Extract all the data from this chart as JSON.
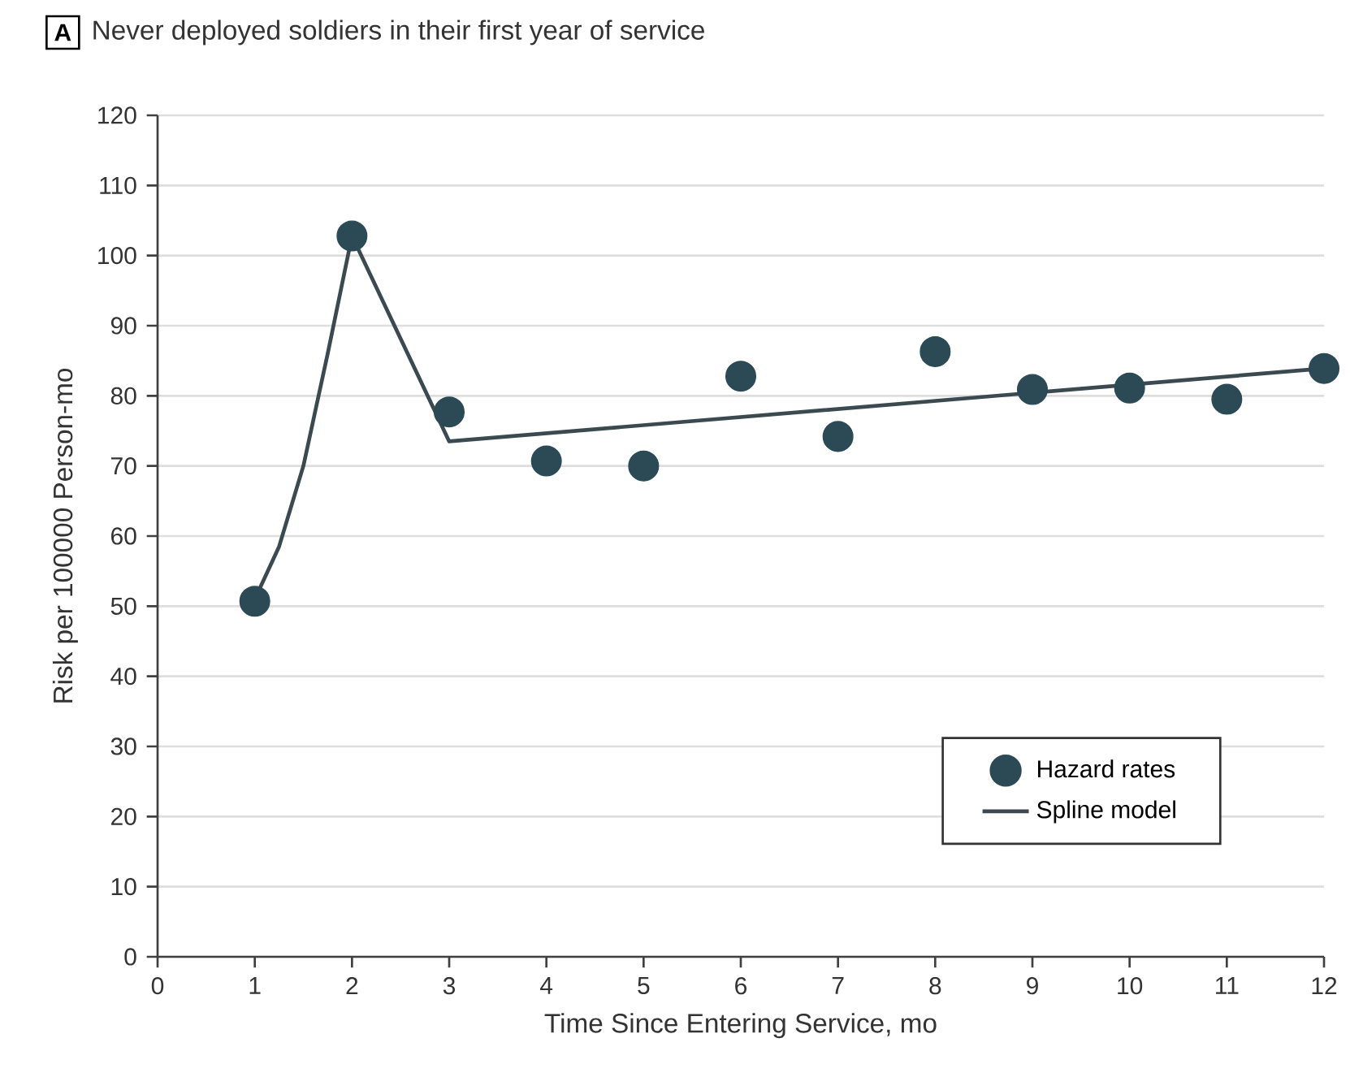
{
  "chart_data": {
    "type": "scatter",
    "title": "Never deployed soldiers in their first year of service",
    "annotations": [
      "A"
    ],
    "xlabel": "Time Since Entering Service, mo",
    "ylabel": "Risk per 100000 Person-mo",
    "xlim": [
      0,
      12
    ],
    "ylim": [
      0,
      120
    ],
    "xticks": [
      0,
      1,
      2,
      3,
      4,
      5,
      6,
      7,
      8,
      9,
      10,
      11,
      12
    ],
    "yticks": [
      0,
      10,
      20,
      30,
      40,
      50,
      60,
      70,
      80,
      90,
      100,
      110,
      120
    ],
    "grid": "y",
    "legend": "bottom right",
    "marker": "circle",
    "series": [
      {
        "name": "Hazard rates",
        "color": "#2b4a55",
        "x": [
          1,
          2,
          3,
          4,
          5,
          6,
          7,
          8,
          9,
          10,
          11,
          12
        ],
        "values": [
          50.7,
          102.8,
          77.7,
          70.7,
          70,
          82.8,
          74.2,
          86.3,
          80.9,
          81.1,
          79.5,
          83.9
        ]
      },
      {
        "name": "Spline model",
        "type": "line",
        "marker": "none",
        "line_style": "solid",
        "color": "#3a4a50",
        "x": [
          1,
          1.25,
          1.5,
          1.75,
          2,
          3,
          12
        ],
        "values": [
          51,
          58.5,
          70,
          86,
          102.8,
          73.5,
          83.9
        ]
      }
    ]
  }
}
